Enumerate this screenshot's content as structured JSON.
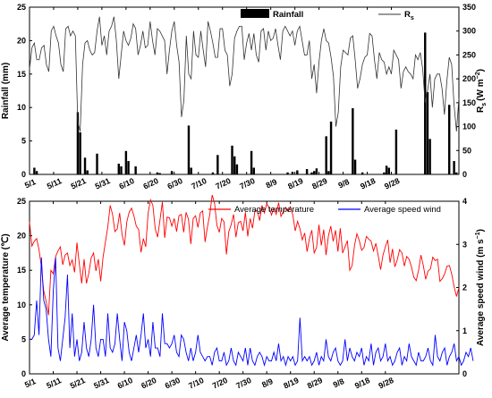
{
  "chart_data": [
    {
      "type": "bar+line",
      "x_ticks": [
        "5/1",
        "5/11",
        "5/21",
        "5/31",
        "6/10",
        "6/20",
        "6/30",
        "7/10",
        "7/20",
        "7/30",
        "8/9",
        "8/19",
        "8/29",
        "9/8",
        "9/18",
        "9/28"
      ],
      "ylabel_left": "Rainfall (mm)",
      "ylabel_right": "R",
      "ylabel_right_sub": "s",
      "ylabel_right_units": "(W m",
      "ylabel_right_exp": "−2",
      "ylim_left": [
        0,
        25
      ],
      "yticks_left": [
        0,
        5,
        10,
        15,
        20,
        25
      ],
      "ylim_right": [
        0,
        350
      ],
      "yticks_right": [
        0,
        50,
        100,
        150,
        200,
        250,
        300,
        350
      ],
      "legend": {
        "bar_label": "Rainfall",
        "line_label": "R",
        "line_label_sub": "s"
      },
      "series": [
        {
          "name": "Rainfall",
          "axis": "left",
          "kind": "bar",
          "values": [
            0,
            0,
            1,
            0.5,
            0,
            0,
            0,
            0,
            0,
            0,
            0,
            0,
            0,
            0,
            0,
            0,
            0,
            0,
            0,
            0,
            9.3,
            6.3,
            0,
            2.5,
            0.6,
            0,
            0,
            0,
            3.1,
            0,
            0,
            0,
            0,
            0,
            0,
            0,
            0,
            1.6,
            1.2,
            0,
            3.5,
            2.0,
            0,
            0,
            1.2,
            0,
            0,
            0,
            0,
            0,
            0,
            0,
            0,
            0.3,
            0.2,
            0,
            0,
            0,
            0,
            0.5,
            0,
            0,
            0,
            0,
            0,
            0,
            7.3,
            1.0,
            0,
            0,
            0,
            0,
            0,
            0,
            0,
            0,
            0.3,
            0,
            2.9,
            0,
            0,
            0,
            0,
            0,
            4.3,
            2.7,
            1.5,
            0,
            0,
            0,
            0,
            0,
            3.5,
            1.0,
            0,
            0,
            0,
            0,
            0,
            0,
            0,
            0,
            0,
            0,
            0,
            0,
            0,
            0.3,
            0,
            0.4,
            0,
            0.6,
            0,
            0,
            0,
            0.8,
            0,
            0.3,
            0.5,
            0.9,
            0,
            0,
            0,
            5.7,
            0.5,
            7.9,
            0,
            0,
            0,
            0,
            0,
            0,
            0,
            0,
            9.9,
            2.2,
            0,
            0,
            0.3,
            0,
            0,
            0,
            0,
            0,
            0,
            0,
            0,
            0.3,
            1.3,
            1.0,
            0,
            0,
            6.7,
            0,
            0,
            0,
            0,
            0,
            0,
            0,
            0,
            0,
            0,
            0,
            21.2,
            12.3,
            5.3,
            0,
            0,
            0,
            0,
            0,
            0,
            0,
            10.4,
            0,
            2.0,
            0.3,
            0
          ]
        },
        {
          "name": "Rs",
          "axis": "right",
          "kind": "line",
          "values": [
            220,
            265,
            275,
            240,
            240,
            265,
            270,
            230,
            215,
            300,
            310,
            290,
            275,
            230,
            215,
            305,
            310,
            290,
            300,
            290,
            110,
            90,
            230,
            275,
            280,
            260,
            250,
            255,
            300,
            330,
            270,
            290,
            250,
            300,
            310,
            330,
            280,
            200,
            250,
            300,
            280,
            270,
            285,
            315,
            305,
            250,
            270,
            300,
            265,
            270,
            320,
            280,
            250,
            305,
            300,
            290,
            280,
            210,
            260,
            300,
            320,
            270,
            235,
            120,
            155,
            290,
            210,
            200,
            300,
            250,
            245,
            300,
            260,
            225,
            320,
            300,
            275,
            245,
            245,
            305,
            305,
            260,
            250,
            185,
            210,
            285,
            300,
            310,
            310,
            240,
            275,
            295,
            260,
            295,
            250,
            235,
            300,
            305,
            260,
            300,
            280,
            285,
            305,
            270,
            240,
            300,
            310,
            300,
            290,
            300,
            270,
            300,
            310,
            280,
            250,
            250,
            280,
            200,
            230,
            170,
            235,
            280,
            305,
            280,
            275,
            245,
            205,
            100,
            130,
            225,
            260,
            255,
            250,
            285,
            290,
            240,
            180,
            200,
            230,
            245,
            250,
            295,
            290,
            240,
            200,
            255,
            240,
            235,
            210,
            225,
            210,
            260,
            250,
            240,
            180,
            215,
            225,
            215,
            210,
            200,
            250,
            240,
            255,
            220,
            150,
            175,
            210,
            140,
            200,
            210,
            210,
            180,
            125,
            195,
            245,
            230,
            145,
            90,
            160
          ]
        }
      ]
    },
    {
      "type": "line",
      "x_ticks": [
        "5/1",
        "5/11",
        "5/21",
        "5/31",
        "6/10",
        "6/20",
        "6/30",
        "7/10",
        "7/20",
        "7/30",
        "8/9",
        "8/19",
        "8/29",
        "9/8",
        "9/18",
        "9/28"
      ],
      "ylabel_left": "Average temperature (℃)",
      "ylabel_right": "Average speed wind",
      "ylabel_right_units": "(m s",
      "ylabel_right_exp": "−1",
      "ylim_left": [
        0,
        25
      ],
      "yticks_left": [
        0,
        5,
        10,
        15,
        20,
        25
      ],
      "ylim_right": [
        0,
        4
      ],
      "yticks_right": [
        0,
        1,
        2,
        3,
        4
      ],
      "legend": [
        {
          "label": "Average temperature",
          "color": "#ff0000"
        },
        {
          "label": "Average speed wind",
          "color": "#0000ff"
        }
      ],
      "series": [
        {
          "name": "Average temperature",
          "axis": "left",
          "color": "#ff0000",
          "values": [
            22,
            18.5,
            19.2,
            19.6,
            18,
            15.5,
            12,
            10.5,
            8.5,
            15,
            14.5,
            17,
            17.8,
            18.4,
            15.8,
            17.2,
            17.5,
            15.7,
            16.5,
            14.7,
            19,
            15.9,
            13.1,
            16.6,
            13.1,
            14.6,
            16.8,
            17.5,
            14.9,
            16.6,
            13.4,
            16.9,
            19.1,
            21.3,
            24.4,
            23.1,
            20.6,
            21,
            23.3,
            20.2,
            18.6,
            22,
            23.4,
            24,
            22.9,
            21.4,
            20.9,
            17.6,
            19.6,
            18.4,
            23.3,
            25.2,
            24.4,
            21,
            19.8,
            22.3,
            24.9,
            19.7,
            22.7,
            22.6,
            21.4,
            22.5,
            20.6,
            22.9,
            23.1,
            20.5,
            23.4,
            22.4,
            18.8,
            22.5,
            22.9,
            21.2,
            23.3,
            23.6,
            19.1,
            21.3,
            23.1,
            25.9,
            24.7,
            21.5,
            20.5,
            22.5,
            22,
            17.3,
            20.6,
            21.6,
            23.1,
            19.8,
            21.9,
            22.1,
            20.7,
            23.4,
            19.9,
            22.5,
            21.1,
            23.6,
            23.7,
            22.2,
            24.4,
            23.3,
            24.6,
            24.1,
            23,
            24,
            23.1,
            24.8,
            22.8,
            23.5,
            24.1,
            23.5,
            24.2,
            23,
            20.7,
            22.1,
            21,
            19.4,
            20.4,
            17.7,
            19.6,
            20.8,
            17.5,
            18.3,
            21.6,
            18.6,
            20.9,
            17.2,
            20,
            21.4,
            19.2,
            20.8,
            17.7,
            21.1,
            17.5,
            18.4,
            19.3,
            15,
            15.7,
            18.6,
            20.3,
            19.3,
            17.9,
            18.3,
            19.9,
            19.5,
            19.2,
            17.8,
            18.9,
            17.1,
            15.1,
            17.2,
            18.4,
            19.4,
            16.1,
            18.1,
            15.5,
            16.5,
            18,
            17.5,
            15.6,
            17,
            16.6,
            15.5,
            14,
            13.5,
            15,
            17.2,
            15.7,
            13.7,
            14.9,
            15.2,
            16.9,
            16.4,
            16.6,
            13.4,
            13.8,
            14.5,
            15.6,
            15.7,
            14.4,
            12.6,
            11.2,
            12.5
          ]
        },
        {
          "name": "Average speed wind",
          "axis": "right",
          "color": "#0000ff",
          "values": [
            0.8,
            0.8,
            0.9,
            1.7,
            0.9,
            2.7,
            1.7,
            1.5,
            0.8,
            0.4,
            1.9,
            2.7,
            0.6,
            0.3,
            0.8,
            1.3,
            2.3,
            0.6,
            1.4,
            0.4,
            0.8,
            0.3,
            0.5,
            1.2,
            0.6,
            0.4,
            0.8,
            1.6,
            0.6,
            0.4,
            0.8,
            0.8,
            0.4,
            1.4,
            0.6,
            0.5,
            0.7,
            1.4,
            0.8,
            0.3,
            1.2,
            1.0,
            0.5,
            0.3,
            0.6,
            0.9,
            0.5,
            0.9,
            1.4,
            0.6,
            0.8,
            0.4,
            1.2,
            0.6,
            0.6,
            0.4,
            1.4,
            0.7,
            0.7,
            0.6,
            0.7,
            0.9,
            0.5,
            0.4,
            0.9,
            0.8,
            0.5,
            0.3,
            0.6,
            0.3,
            0.5,
            0.9,
            0.5,
            0.4,
            0.3,
            0.4,
            0.4,
            0.2,
            0.5,
            0.6,
            0.3,
            0.3,
            0.5,
            0.2,
            0.3,
            0.6,
            0.3,
            0.2,
            0.5,
            0.4,
            0.3,
            0.6,
            0.2,
            0.6,
            0.3,
            0.2,
            0.4,
            0.5,
            0.4,
            0.2,
            0.4,
            0.3,
            0.3,
            0.5,
            0.3,
            0.7,
            0.3,
            0.4,
            0.2,
            0.4,
            0.3,
            0.4,
            0.2,
            0.3,
            1.3,
            0.3,
            0.4,
            0.3,
            0.4,
            0.2,
            0.3,
            0.5,
            0.2,
            0.4,
            0.3,
            0.8,
            0.4,
            0.3,
            0.5,
            0.6,
            0.3,
            0.2,
            0.3,
            0.8,
            0.3,
            0.6,
            0.4,
            0.3,
            0.5,
            0.4,
            0.6,
            0.2,
            0.4,
            0.3,
            0.7,
            0.2,
            0.5,
            0.6,
            0.3,
            0.4,
            0.7,
            0.3,
            0.4,
            0.2,
            0.3,
            0.5,
            0.6,
            0.2,
            0.4,
            0.3,
            0.7,
            0.4,
            0.3,
            0.2,
            0.5,
            0.3,
            0.3,
            0.4,
            0.6,
            0.3,
            0.2,
            0.9,
            0.4,
            0.3,
            0.5,
            0.6,
            0.2,
            0.4,
            0.5,
            0.7,
            0.3,
            0.4,
            0.2,
            0.3,
            0.5,
            0.4,
            0.6,
            0.3
          ]
        }
      ]
    }
  ]
}
